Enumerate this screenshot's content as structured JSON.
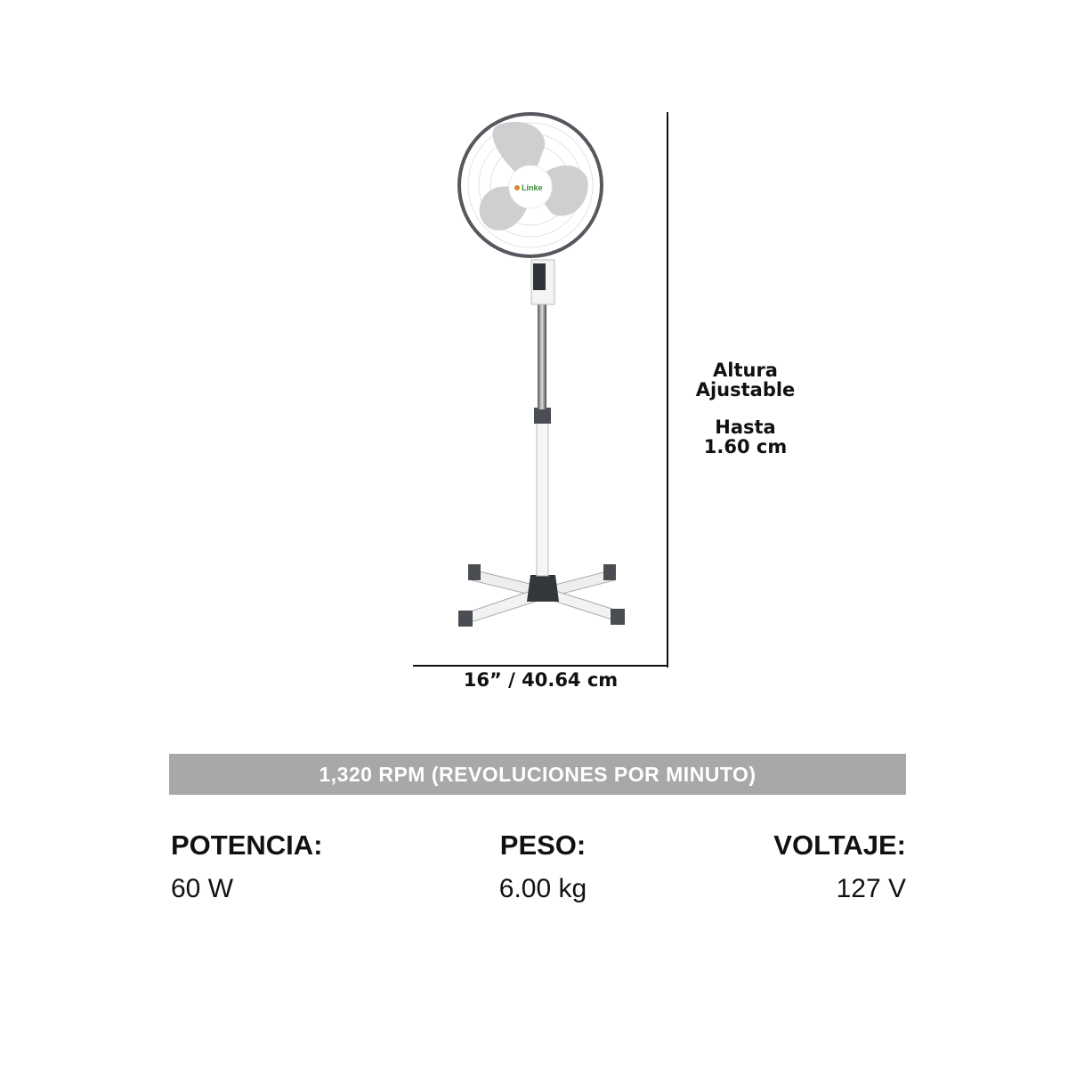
{
  "product": {
    "brand_logo": "Linke",
    "dimensions": {
      "width_label": "16” / 40.64 cm",
      "height_label_line1": "Altura",
      "height_label_line2": "Ajustable",
      "height_label_line3": "Hasta",
      "height_label_line4": "1.60 cm"
    },
    "rpm_banner": "1,320 RPM (REVOLUCIONES POR MINUTO)",
    "specs": [
      {
        "label": "POTENCIA:",
        "value": "60 W"
      },
      {
        "label": "PESO:",
        "value": "6.00 kg"
      },
      {
        "label": "VOLTAJE:",
        "value": "127 V"
      }
    ],
    "colors": {
      "banner": "#a8a8a8",
      "fan_rim": "#55585e",
      "blade": "#cfcfd2"
    }
  }
}
